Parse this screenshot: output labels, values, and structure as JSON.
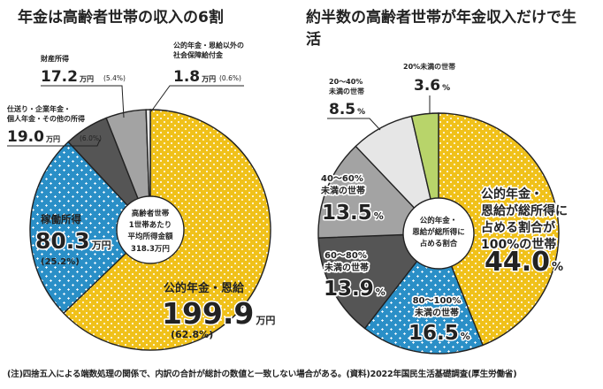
{
  "note": "(注)四捨五入による端数処理の関係で、内訳の合計が総計の数値と一致しない場合がある。(資料)2022年国民生活基礎調査(厚生労働省)",
  "colors": {
    "yellow": "#f0c11a",
    "blue": "#2a8fc7",
    "dark": "#555555",
    "gray": "#a3a3a3",
    "light": "#e6e6e6",
    "green": "#b8d46a"
  },
  "chart_data": [
    {
      "type": "pie",
      "title": "年金は高齢者世帯の収入の6割",
      "unit": "万円",
      "center_label": [
        "高齢者世帯",
        "1世帯あたり",
        "平均所得金額",
        "318.3万円"
      ],
      "slices": [
        {
          "label": "公的年金・恩給",
          "value": 199.9,
          "percent": "(62.8%)",
          "unit": "万円",
          "color": "yellow"
        },
        {
          "label": "稼働所得",
          "value": 80.3,
          "percent": "(25.2%)",
          "unit": "万円",
          "color": "blue"
        },
        {
          "label_lines": [
            "仕送り・企業年金・",
            "個人年金・その他の所得"
          ],
          "value": 19.0,
          "percent": "(6.0%)",
          "unit": "万円",
          "color": "dark"
        },
        {
          "label": "財産所得",
          "value": 17.2,
          "percent": "(5.4%)",
          "unit": "万円",
          "color": "gray"
        },
        {
          "label_lines": [
            "公的年金・恩給以外の",
            "社会保障給付金"
          ],
          "value": 1.8,
          "percent": "(0.6%)",
          "unit": "万円",
          "color": "light"
        }
      ]
    },
    {
      "type": "pie",
      "title": "約半数の高齢者世帯が年金収入だけで生活",
      "unit": "%",
      "center_label": [
        "公的年金・",
        "恩給が総所得に",
        "占める割合"
      ],
      "slices": [
        {
          "label_lines": [
            "公的年金・",
            "恩給が総所得に",
            "占める割合が",
            "100%の世帯"
          ],
          "value": 44.0,
          "color": "yellow"
        },
        {
          "label_lines": [
            "80～100%",
            "未満の世帯"
          ],
          "value": 16.5,
          "color": "blue"
        },
        {
          "label_lines": [
            "60～80%",
            "未満の世帯"
          ],
          "value": 13.9,
          "color": "dark"
        },
        {
          "label_lines": [
            "40～60%",
            "未満の世帯"
          ],
          "value": 13.5,
          "color": "gray"
        },
        {
          "label_lines": [
            "20～40%",
            "未満の世帯"
          ],
          "value": 8.5,
          "color": "light"
        },
        {
          "label": "20%未満の世帯",
          "value": 3.6,
          "color": "green"
        }
      ]
    }
  ]
}
